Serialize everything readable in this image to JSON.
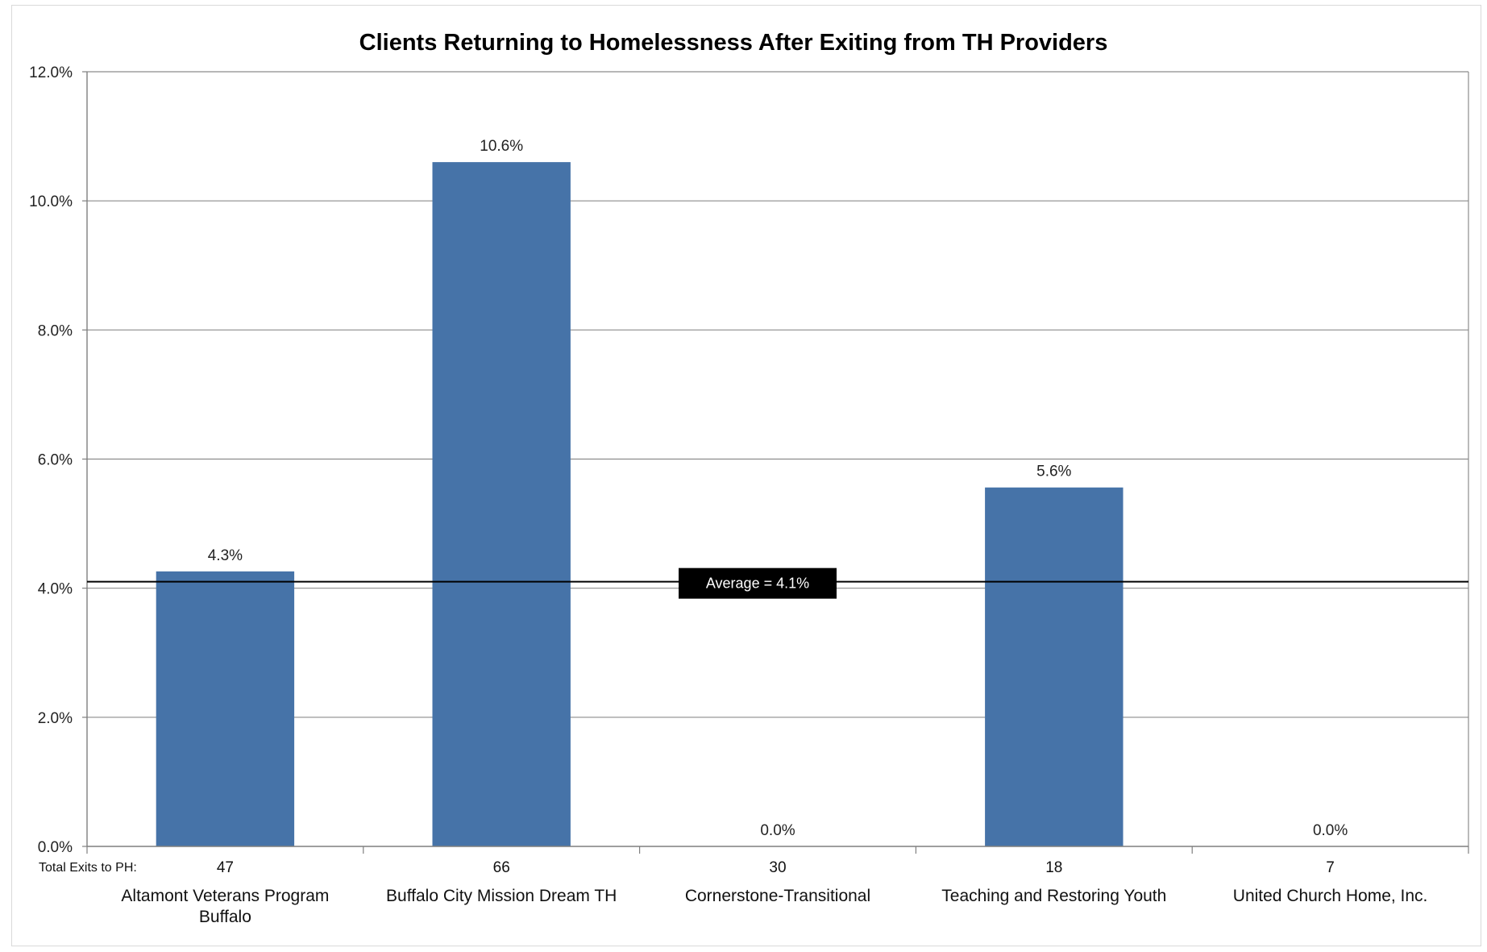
{
  "chart_data": {
    "type": "bar",
    "title": "Clients Returning to Homelessness After Exiting from TH Providers",
    "categories": [
      [
        "Altamont Veterans Program",
        "Buffalo"
      ],
      [
        "Buffalo City Mission Dream TH"
      ],
      [
        "Cornerstone-Transitional"
      ],
      [
        "Teaching and Restoring Youth"
      ],
      [
        "United Church Home, Inc."
      ]
    ],
    "values": [
      4.26,
      10.6,
      0.0,
      5.56,
      0.0
    ],
    "data_labels": [
      "4.3%",
      "10.6%",
      "0.0%",
      "5.6%",
      "0.0%"
    ],
    "ylim": [
      0,
      12
    ],
    "yticks": [
      0,
      2,
      4,
      6,
      8,
      10,
      12
    ],
    "ytick_labels": [
      "0.0%",
      "2.0%",
      "4.0%",
      "6.0%",
      "8.0%",
      "10.0%",
      "12.0%"
    ],
    "grid": true,
    "bar_color": "#4673a8",
    "average": {
      "value": 4.1,
      "label": "Average = 4.1%"
    },
    "exits_row": {
      "label": "Total Exits to PH:",
      "values": [
        "47",
        "66",
        "30",
        "18",
        "7"
      ]
    },
    "legend": "none"
  }
}
